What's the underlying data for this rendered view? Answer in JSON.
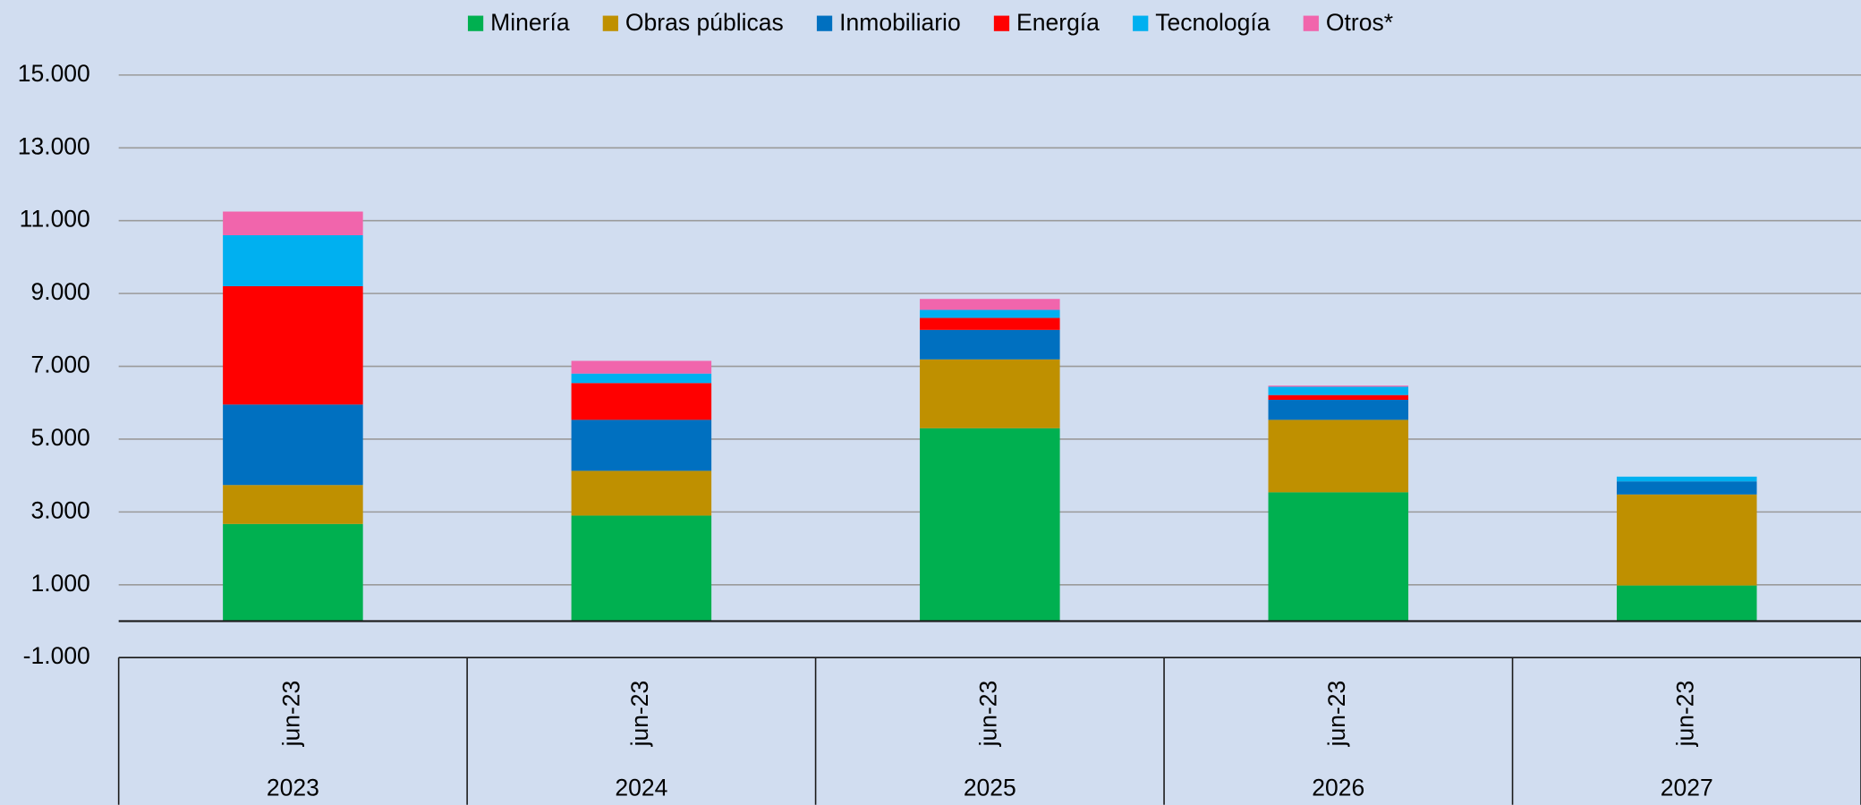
{
  "chart_data": {
    "type": "stacked_bar",
    "categories": [
      "2023",
      "2024",
      "2025",
      "2026",
      "2027"
    ],
    "subcategories": [
      "jun-23",
      "jun-23",
      "jun-23",
      "jun-23",
      "jun-23"
    ],
    "series": [
      {
        "name": "Minería",
        "color": "#00b050",
        "values": [
          2670,
          2900,
          5300,
          3540,
          980
        ]
      },
      {
        "name": "Obras públicas",
        "color": "#bf9000",
        "values": [
          1070,
          1230,
          1890,
          1990,
          2500
        ]
      },
      {
        "name": "Inmobiliario",
        "color": "#0070c0",
        "values": [
          2210,
          1400,
          810,
          550,
          360
        ]
      },
      {
        "name": "Energía",
        "color": "#ff0000",
        "values": [
          3250,
          1010,
          330,
          130,
          0
        ]
      },
      {
        "name": "Tecnología",
        "color": "#00b0f0",
        "values": [
          1400,
          260,
          220,
          230,
          130
        ]
      },
      {
        "name": "Otros*",
        "color": "#f165ac",
        "values": [
          650,
          350,
          300,
          30,
          0
        ]
      }
    ],
    "ylim": [
      -1000,
      15000
    ],
    "yticks": [
      {
        "value": -1000,
        "label": "-1.000"
      },
      {
        "value": 1000,
        "label": "1.000"
      },
      {
        "value": 3000,
        "label": "3.000"
      },
      {
        "value": 5000,
        "label": "5.000"
      },
      {
        "value": 7000,
        "label": "7.000"
      },
      {
        "value": 9000,
        "label": "9.000"
      },
      {
        "value": 11000,
        "label": "11.000"
      },
      {
        "value": 13000,
        "label": "13.000"
      },
      {
        "value": 15000,
        "label": "15.000"
      }
    ],
    "grid": true,
    "legend": "top"
  }
}
